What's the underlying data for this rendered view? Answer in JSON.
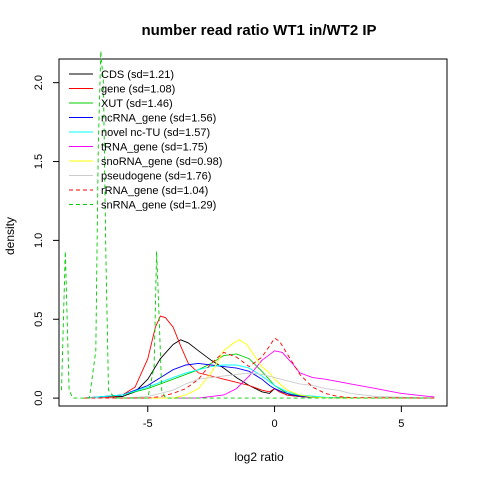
{
  "chart_data": {
    "type": "line",
    "title": "number read ratio WT1 in/WT2 IP",
    "xlabel": "log2 ratio",
    "ylabel": "density",
    "xlim": [
      -8.5,
      6.8
    ],
    "ylim": [
      -0.05,
      2.15
    ],
    "xticks": [
      -5,
      0,
      5
    ],
    "yticks": [
      0.0,
      0.5,
      1.0,
      1.5,
      2.0
    ],
    "ytick_labels": [
      "0.0",
      "0.5",
      "1.0",
      "1.5",
      "2.0"
    ],
    "grid": false,
    "legend_position": "top-left",
    "series": [
      {
        "name": "CDS (sd=1.21)",
        "color": "#000000",
        "dash": false,
        "x": [
          -7.5,
          -6,
          -5.5,
          -5,
          -4.5,
          -4,
          -3.7,
          -3.4,
          -3,
          -2.5,
          -2,
          -1.5,
          -1,
          -0.5,
          -0.2,
          0,
          0.2,
          0.5,
          1,
          1.5,
          2,
          3,
          6.3
        ],
        "y": [
          0,
          0.01,
          0.04,
          0.12,
          0.25,
          0.34,
          0.37,
          0.35,
          0.3,
          0.24,
          0.19,
          0.13,
          0.08,
          0.04,
          0.03,
          0.06,
          0.04,
          0.02,
          0.01,
          0.005,
          0.003,
          0.001,
          0
        ]
      },
      {
        "name": "gene (sd=1.08)",
        "color": "#ff0000",
        "dash": false,
        "x": [
          -7.5,
          -6.5,
          -6,
          -5.5,
          -5,
          -4.7,
          -4.5,
          -4.3,
          -4,
          -3.7,
          -3.4,
          -3,
          -2.5,
          -2,
          -1.5,
          -1,
          -0.5,
          -0.2,
          0,
          0.2,
          0.5,
          1,
          2,
          3,
          6.3
        ],
        "y": [
          0,
          0.005,
          0.02,
          0.07,
          0.25,
          0.45,
          0.52,
          0.51,
          0.45,
          0.33,
          0.22,
          0.16,
          0.14,
          0.12,
          0.1,
          0.08,
          0.05,
          0.04,
          0.06,
          0.04,
          0.02,
          0.01,
          0.003,
          0.001,
          0
        ]
      },
      {
        "name": "XUT (sd=1.46)",
        "color": "#00cc00",
        "dash": false,
        "x": [
          -7.5,
          -6,
          -5,
          -4,
          -3,
          -2.5,
          -2,
          -1.5,
          -1,
          -0.5,
          0,
          0.5,
          1,
          1.5,
          2,
          3,
          6.3
        ],
        "y": [
          0,
          0.02,
          0.06,
          0.12,
          0.18,
          0.22,
          0.27,
          0.28,
          0.25,
          0.17,
          0.08,
          0.03,
          0.015,
          0.008,
          0.004,
          0.001,
          0
        ]
      },
      {
        "name": "ncRNA_gene (sd=1.56)",
        "color": "#0000ff",
        "dash": false,
        "x": [
          -7.5,
          -6,
          -5,
          -4.5,
          -4,
          -3.5,
          -3,
          -2.5,
          -2,
          -1.5,
          -1,
          -0.5,
          -0.2,
          0,
          0.3,
          0.7,
          1,
          1.5,
          2,
          3,
          6.3
        ],
        "y": [
          0,
          0.02,
          0.08,
          0.13,
          0.18,
          0.21,
          0.22,
          0.21,
          0.2,
          0.19,
          0.17,
          0.12,
          0.08,
          0.06,
          0.04,
          0.02,
          0.012,
          0.006,
          0.003,
          0.001,
          0
        ]
      },
      {
        "name": "novel nc-TU (sd=1.57)",
        "color": "#00ffff",
        "dash": false,
        "x": [
          -7.5,
          -6,
          -5,
          -4.5,
          -4,
          -3.5,
          -3,
          -2.5,
          -2,
          -1.5,
          -1,
          -0.5,
          0,
          0.5,
          1,
          2,
          3,
          6.3
        ],
        "y": [
          0,
          0.02,
          0.07,
          0.1,
          0.13,
          0.16,
          0.18,
          0.2,
          0.21,
          0.21,
          0.19,
          0.14,
          0.08,
          0.04,
          0.02,
          0.005,
          0.001,
          0
        ]
      },
      {
        "name": "tRNA_gene (sd=1.75)",
        "color": "#ff00ff",
        "dash": false,
        "x": [
          -7.5,
          -3,
          -2,
          -1.5,
          -1,
          -0.5,
          0,
          0.3,
          0.7,
          1,
          1.5,
          2,
          3,
          4,
          5,
          6,
          6.3
        ],
        "y": [
          0,
          0,
          0.02,
          0.06,
          0.14,
          0.24,
          0.3,
          0.29,
          0.22,
          0.16,
          0.13,
          0.12,
          0.09,
          0.06,
          0.03,
          0.012,
          0.008
        ]
      },
      {
        "name": "snoRNA_gene (sd=0.98)",
        "color": "#ffff00",
        "dash": false,
        "x": [
          -7.5,
          -4,
          -3.5,
          -3,
          -2.5,
          -2,
          -1.7,
          -1.4,
          -1.1,
          -0.8,
          -0.5,
          -0.2,
          0,
          0.5,
          1,
          1.5,
          2,
          3,
          6.3
        ],
        "y": [
          0,
          0,
          0.02,
          0.06,
          0.16,
          0.3,
          0.34,
          0.37,
          0.34,
          0.27,
          0.2,
          0.16,
          0.12,
          0.05,
          0.02,
          0.006,
          0.002,
          0,
          0
        ]
      },
      {
        "name": "pseudogene (sd=1.76)",
        "color": "#cccccc",
        "dash": false,
        "x": [
          -7.5,
          -6,
          -5,
          -4,
          -3.5,
          -3,
          -2.5,
          -2,
          -1.5,
          -1,
          -0.5,
          0,
          0.5,
          1,
          1.5,
          2,
          2.5,
          3,
          4,
          6.3
        ],
        "y": [
          0,
          0,
          0.01,
          0.05,
          0.09,
          0.12,
          0.13,
          0.14,
          0.15,
          0.16,
          0.15,
          0.13,
          0.11,
          0.09,
          0.08,
          0.06,
          0.05,
          0.03,
          0.01,
          0
        ]
      },
      {
        "name": "rRNA_gene (sd=1.04)",
        "color": "#ff0000",
        "dash": true,
        "x": [
          -7.5,
          -5,
          -4.5,
          -4,
          -3.5,
          -3,
          -2.5,
          -2,
          -1.5,
          -1,
          -0.5,
          -0.2,
          0,
          0.2,
          0.5,
          1,
          1.5,
          2,
          2.5,
          3,
          6.3
        ],
        "y": [
          0,
          0,
          0.01,
          0.03,
          0.06,
          0.12,
          0.22,
          0.29,
          0.26,
          0.2,
          0.26,
          0.33,
          0.38,
          0.36,
          0.28,
          0.15,
          0.07,
          0.03,
          0.01,
          0.003,
          0
        ]
      },
      {
        "name": "snRNA_gene (sd=1.29)",
        "color": "#00cc00",
        "dash": true,
        "x": [
          -8.4,
          -8.25,
          -8.1,
          -7.95,
          -7.8,
          -7.3,
          -7.05,
          -6.95,
          -6.85,
          -6.75,
          -6.65,
          -6.55,
          -6.3,
          -5,
          -4.75,
          -4.65,
          -4.55,
          -4.45,
          -4.3,
          -3,
          -2,
          -1,
          0,
          1,
          2,
          3,
          6.3
        ],
        "y": [
          0.05,
          0.93,
          0.05,
          0,
          0,
          0,
          0.3,
          1.6,
          2.2,
          2.0,
          0.9,
          0.05,
          0,
          0,
          0.2,
          0.93,
          0.5,
          0.05,
          0,
          0,
          0,
          0,
          0,
          0,
          0,
          0,
          0
        ]
      }
    ]
  }
}
